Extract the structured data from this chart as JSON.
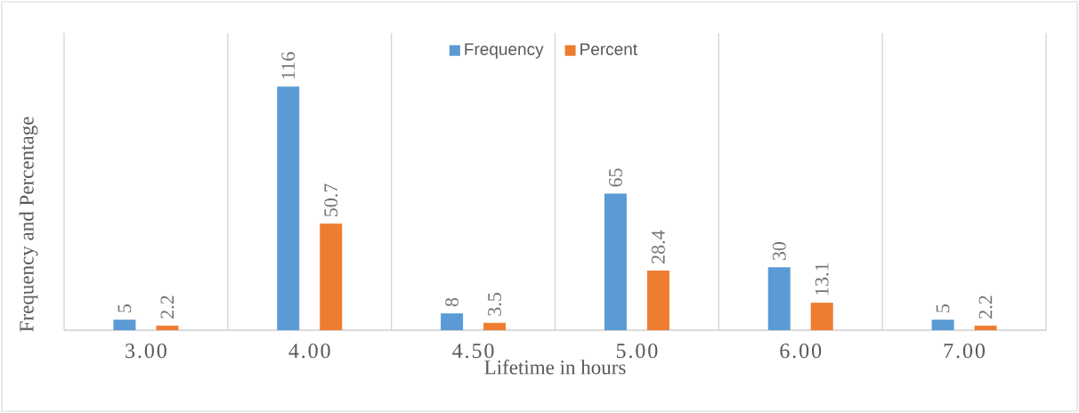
{
  "chart_data": {
    "type": "bar",
    "xlabel": "Lifetime in hours",
    "ylabel": "Frequency and Percentage",
    "categories": [
      "3.00",
      "4.00",
      "4.50",
      "5.00",
      "6.00",
      "7.00"
    ],
    "series": [
      {
        "name": "Frequency",
        "color": "#5b9bd5",
        "values": [
          5,
          116,
          8,
          65,
          30,
          5
        ]
      },
      {
        "name": "Percent",
        "color": "#ed7d31",
        "values": [
          2.2,
          50.7,
          3.5,
          28.4,
          13.1,
          2.2
        ]
      }
    ],
    "data_labels": true,
    "grid": "x",
    "legend": "top"
  }
}
